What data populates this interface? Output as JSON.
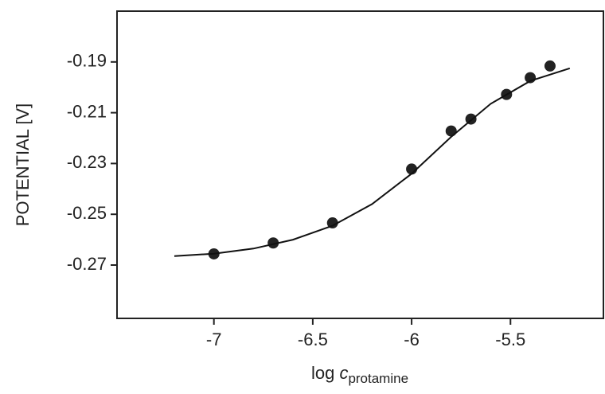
{
  "chart_data": {
    "type": "scatter",
    "y_label": "POTENTIAL [V]",
    "x_label": {
      "prefix": "log",
      "variable": "c",
      "subscript": "protamine"
    },
    "xlim": [
      -7.49,
      -5.03
    ],
    "ylim": [
      -0.291,
      -0.17
    ],
    "xticks": [
      -7,
      -6.5,
      -6,
      -5.5
    ],
    "yticks": [
      -0.19,
      -0.21,
      -0.23,
      -0.25,
      -0.27
    ],
    "series": [
      {
        "style": "markers",
        "color": "#222222",
        "x": [
          -7,
          -6.7,
          -6.4,
          -6,
          -5.8,
          -5.7,
          -5.52,
          -5.4,
          -5.3
        ],
        "values": [
          -0.2656,
          -0.2613,
          -0.2534,
          -0.2322,
          -0.2172,
          -0.2125,
          -0.2028,
          -0.1962,
          -0.1916
        ]
      },
      {
        "style": "line",
        "color": "#111111",
        "x": [
          -7.2,
          -7.0,
          -6.8,
          -6.6,
          -6.4,
          -6.2,
          -6.0,
          -5.8,
          -5.6,
          -5.4,
          -5.2
        ],
        "values": [
          -0.2665,
          -0.2655,
          -0.2635,
          -0.26,
          -0.2545,
          -0.246,
          -0.234,
          -0.2195,
          -0.2065,
          -0.1975,
          -0.1925
        ]
      }
    ]
  }
}
